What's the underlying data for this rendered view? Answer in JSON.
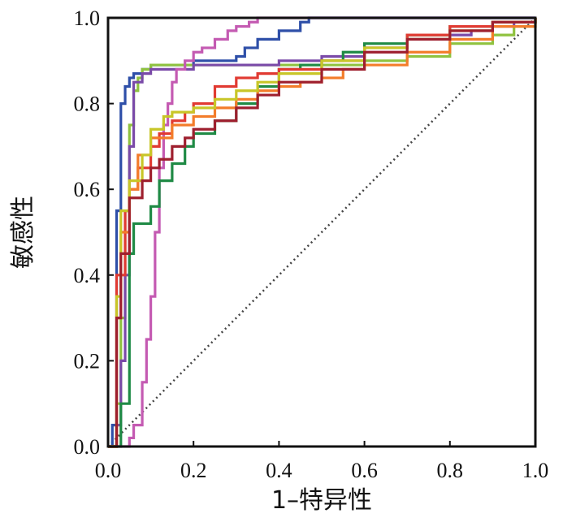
{
  "chart_data": {
    "type": "line",
    "title": "",
    "xlabel": "1–特异性",
    "ylabel": "敏感性",
    "xlim": [
      0,
      1
    ],
    "ylim": [
      0,
      1
    ],
    "xticks": [
      "0.0",
      "0.2",
      "0.4",
      "0.6",
      "0.8",
      "1.0"
    ],
    "yticks": [
      "0.0",
      "0.2",
      "0.4",
      "0.6",
      "0.8",
      "1.0"
    ],
    "xtick_values": [
      0,
      0.2,
      0.4,
      0.6,
      0.8,
      1.0
    ],
    "ytick_values": [
      0,
      0.2,
      0.4,
      0.6,
      0.8,
      1.0
    ],
    "grid": false,
    "reference_line": {
      "x": [
        0,
        1
      ],
      "y": [
        0,
        1
      ],
      "style": "dotted",
      "color": "#444444"
    },
    "series": [
      {
        "color": "#2e4fa8",
        "x": [
          0,
          0.01,
          0.02,
          0.02,
          0.03,
          0.03,
          0.04,
          0.04,
          0.05,
          0.05,
          0.06,
          0.08,
          0.1,
          0.12,
          0.15,
          0.2,
          0.25,
          0.3,
          0.32,
          0.35,
          0.4,
          0.45,
          0.47,
          0.5,
          1.0
        ],
        "y": [
          0,
          0.05,
          0.3,
          0.55,
          0.7,
          0.8,
          0.82,
          0.84,
          0.85,
          0.86,
          0.87,
          0.88,
          0.89,
          0.89,
          0.89,
          0.9,
          0.9,
          0.91,
          0.93,
          0.95,
          0.97,
          0.99,
          1.0,
          1.0,
          1.0
        ]
      },
      {
        "color": "#8fc23f",
        "x": [
          0,
          0.02,
          0.03,
          0.04,
          0.05,
          0.06,
          0.07,
          0.08,
          0.1,
          0.15,
          0.2,
          0.3,
          0.4,
          0.5,
          0.6,
          0.7,
          0.8,
          0.9,
          0.95,
          1.0
        ],
        "y": [
          0,
          0.1,
          0.3,
          0.55,
          0.75,
          0.83,
          0.86,
          0.88,
          0.89,
          0.89,
          0.89,
          0.89,
          0.89,
          0.89,
          0.9,
          0.91,
          0.94,
          0.96,
          0.98,
          1.0
        ]
      },
      {
        "color": "#7a4aa8",
        "x": [
          0,
          0.02,
          0.03,
          0.04,
          0.05,
          0.06,
          0.08,
          0.1,
          0.15,
          0.2,
          0.3,
          0.4,
          0.5,
          0.6,
          0.7,
          0.8,
          0.85,
          0.9,
          0.95,
          1.0
        ],
        "y": [
          0,
          0.05,
          0.2,
          0.4,
          0.7,
          0.85,
          0.87,
          0.88,
          0.88,
          0.89,
          0.89,
          0.9,
          0.91,
          0.93,
          0.95,
          0.96,
          0.97,
          0.98,
          0.99,
          1.0
        ]
      },
      {
        "color": "#c45ab2",
        "x": [
          0,
          0.05,
          0.06,
          0.08,
          0.09,
          0.1,
          0.11,
          0.12,
          0.13,
          0.14,
          0.15,
          0.16,
          0.18,
          0.2,
          0.22,
          0.25,
          0.28,
          0.3,
          0.33,
          0.35,
          0.4,
          1.0
        ],
        "y": [
          0,
          0.02,
          0.05,
          0.15,
          0.25,
          0.35,
          0.5,
          0.65,
          0.75,
          0.8,
          0.85,
          0.88,
          0.9,
          0.92,
          0.93,
          0.95,
          0.97,
          0.98,
          0.99,
          1.0,
          1.0,
          1.0
        ]
      },
      {
        "color": "#1f8a45",
        "x": [
          0,
          0.03,
          0.05,
          0.06,
          0.1,
          0.12,
          0.15,
          0.18,
          0.2,
          0.25,
          0.3,
          0.35,
          0.4,
          0.45,
          0.5,
          0.55,
          0.6,
          0.7,
          0.8,
          0.9,
          1.0
        ],
        "y": [
          0,
          0.1,
          0.45,
          0.52,
          0.56,
          0.62,
          0.66,
          0.7,
          0.73,
          0.76,
          0.8,
          0.84,
          0.88,
          0.89,
          0.9,
          0.92,
          0.94,
          0.96,
          0.98,
          0.99,
          1.0
        ]
      },
      {
        "color": "#e13a32",
        "x": [
          0,
          0.02,
          0.04,
          0.05,
          0.07,
          0.1,
          0.12,
          0.15,
          0.18,
          0.2,
          0.25,
          0.3,
          0.35,
          0.4,
          0.5,
          0.6,
          0.7,
          0.8,
          0.9,
          1.0
        ],
        "y": [
          0,
          0.4,
          0.55,
          0.6,
          0.65,
          0.7,
          0.73,
          0.76,
          0.78,
          0.8,
          0.84,
          0.86,
          0.87,
          0.88,
          0.9,
          0.93,
          0.96,
          0.98,
          0.99,
          1.0
        ]
      },
      {
        "color": "#f37c2a",
        "x": [
          0,
          0.02,
          0.03,
          0.05,
          0.07,
          0.1,
          0.15,
          0.2,
          0.25,
          0.3,
          0.35,
          0.4,
          0.45,
          0.5,
          0.55,
          0.6,
          0.7,
          0.8,
          0.9,
          1.0
        ],
        "y": [
          0,
          0.3,
          0.5,
          0.6,
          0.68,
          0.72,
          0.75,
          0.77,
          0.79,
          0.81,
          0.83,
          0.84,
          0.85,
          0.86,
          0.88,
          0.89,
          0.92,
          0.95,
          0.98,
          1.0
        ]
      },
      {
        "color": "#c8c628",
        "x": [
          0,
          0.02,
          0.03,
          0.05,
          0.08,
          0.1,
          0.13,
          0.15,
          0.2,
          0.25,
          0.3,
          0.35,
          0.4,
          0.5,
          0.6,
          0.7,
          0.8,
          0.9,
          1.0
        ],
        "y": [
          0,
          0.35,
          0.55,
          0.62,
          0.68,
          0.74,
          0.77,
          0.78,
          0.79,
          0.81,
          0.83,
          0.85,
          0.87,
          0.9,
          0.93,
          0.95,
          0.97,
          0.99,
          1.0
        ]
      },
      {
        "color": "#9e1f2e",
        "x": [
          0,
          0.02,
          0.03,
          0.05,
          0.08,
          0.1,
          0.12,
          0.15,
          0.18,
          0.2,
          0.25,
          0.3,
          0.35,
          0.4,
          0.5,
          0.6,
          0.7,
          0.8,
          0.9,
          1.0
        ],
        "y": [
          0,
          0.3,
          0.45,
          0.58,
          0.62,
          0.65,
          0.67,
          0.7,
          0.72,
          0.74,
          0.76,
          0.79,
          0.82,
          0.85,
          0.88,
          0.92,
          0.95,
          0.97,
          0.99,
          1.0
        ]
      }
    ]
  }
}
